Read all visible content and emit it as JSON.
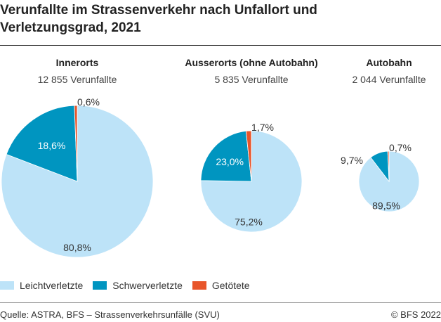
{
  "title": "Verunfallte im Strassenverkehr nach Unfallort und Verletzungsgrad, 2021",
  "colors": {
    "Leichtverletzte": "#bde3f8",
    "Schwerverletzte": "#0095c0",
    "Getötete": "#e8552a"
  },
  "chart_data": {
    "type": "pie",
    "title": "Verunfallte im Strassenverkehr nach Unfallort und Verletzungsgrad, 2021",
    "categories": [
      "Leichtverletzte",
      "Schwerverletzte",
      "Getötete"
    ],
    "legend_position": "bottom-left",
    "pies": [
      {
        "name": "Innerorts",
        "subtitle": "12 855 Verunfallte",
        "total": 12855,
        "values": [
          80.8,
          18.6,
          0.6
        ],
        "labels": [
          "80,8%",
          "18,6%",
          "0,6%"
        ]
      },
      {
        "name": "Ausserorts (ohne Autobahn)",
        "subtitle": "5 835 Verunfallte",
        "total": 5835,
        "values": [
          75.2,
          23.0,
          1.7
        ],
        "labels": [
          "75,2%",
          "23,0%",
          "1,7%"
        ]
      },
      {
        "name": "Autobahn",
        "subtitle": "2 044 Verunfallte",
        "total": 2044,
        "values": [
          89.5,
          9.7,
          0.7
        ],
        "labels": [
          "89,5%",
          "9,7%",
          "0,7%"
        ]
      }
    ]
  },
  "legend": [
    "Leichtverletzte",
    "Schwerverletzte",
    "Getötete"
  ],
  "source": "Quelle: ASTRA, BFS – Strassenverkehrsunfälle (SVU)",
  "copyright": "© BFS 2022"
}
